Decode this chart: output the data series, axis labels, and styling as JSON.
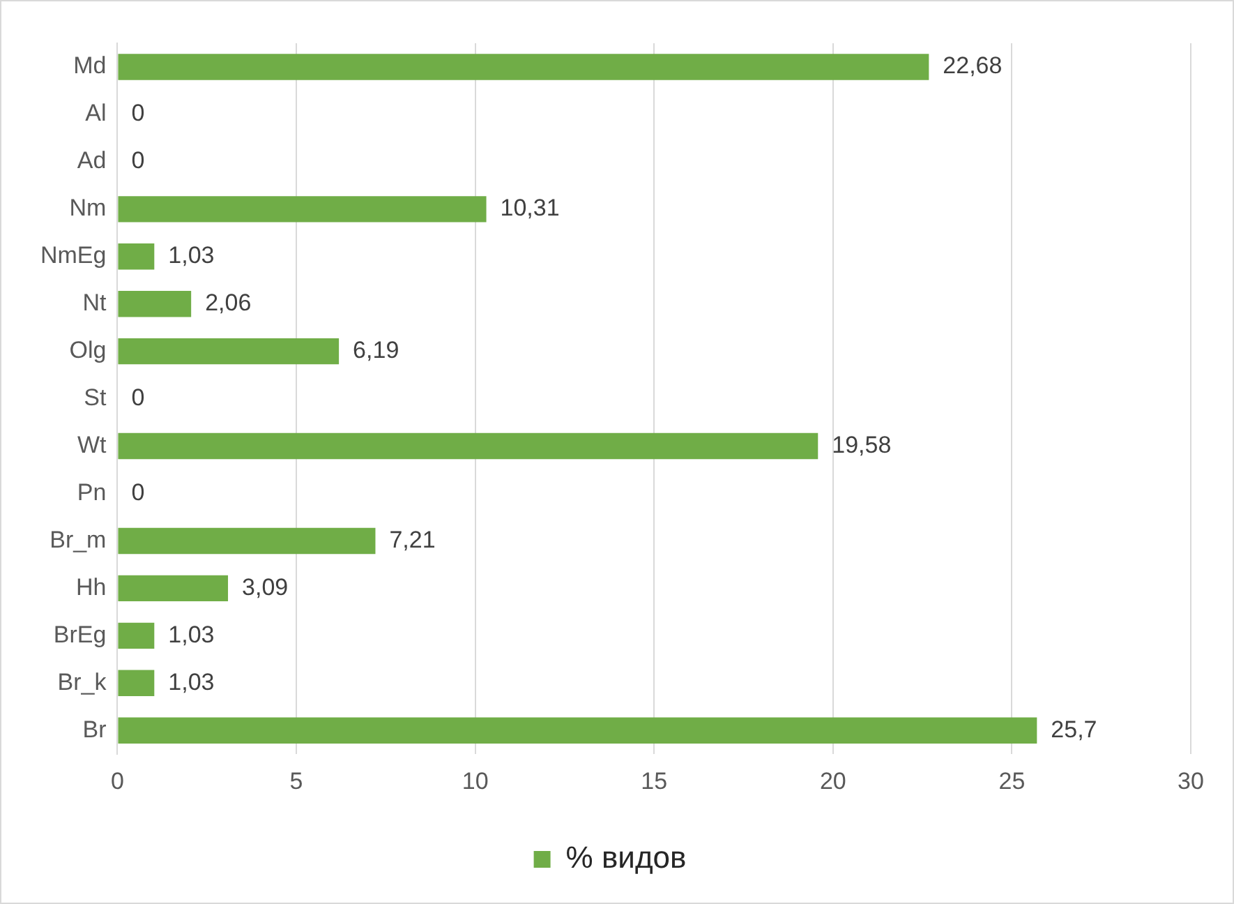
{
  "chart_data": {
    "type": "bar",
    "orientation": "horizontal",
    "categories": [
      "Md",
      "Al",
      "Ad",
      "Nm",
      "NmEg",
      "Nt",
      "Olg",
      "St",
      "Wt",
      "Pn",
      "Br_m",
      "Hh",
      "BrEg",
      "Br_k",
      "Br"
    ],
    "series": [
      {
        "name": "% видов",
        "color": "#70ad47",
        "values": [
          22.68,
          0,
          0,
          10.31,
          1.03,
          2.06,
          6.19,
          0,
          19.58,
          0,
          7.21,
          3.09,
          1.03,
          1.03,
          25.7
        ],
        "value_labels": [
          "22,68",
          "0",
          "0",
          "10,31",
          "1,03",
          "2,06",
          "6,19",
          "0",
          "19,58",
          "0",
          "7,21",
          "3,09",
          "1,03",
          "1,03",
          "25,7"
        ]
      }
    ],
    "xlim": [
      0,
      30
    ],
    "xticks": [
      0,
      5,
      10,
      15,
      20,
      25,
      30
    ],
    "grid": "x",
    "legend": "bottom"
  }
}
